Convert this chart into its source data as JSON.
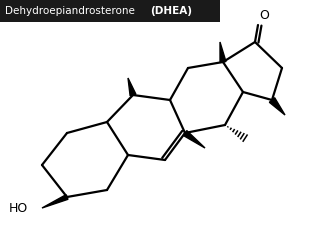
{
  "bg_color": "#ffffff",
  "title_bg": "#1a1a1a",
  "title_fg": "#ffffff",
  "mol_color": "#000000",
  "lw": 1.6,
  "title_normal": "Dehydroepiandrosterone ",
  "title_bold": "(DHEA)",
  "title_fontsize": 7.5
}
